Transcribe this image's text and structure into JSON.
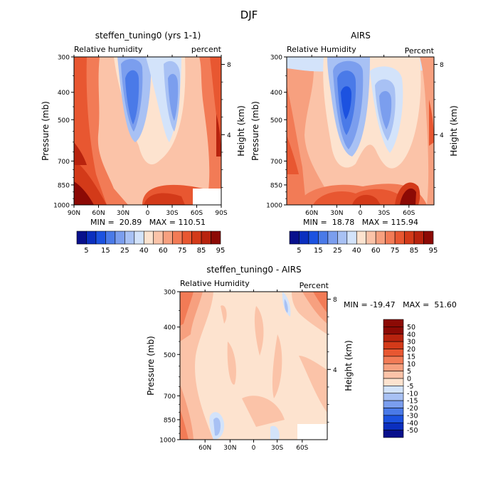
{
  "page": {
    "title": "DJF"
  },
  "chart_data": [
    {
      "type": "heatmap",
      "title": "steffen_tuning0 (yrs 1-1)",
      "left_label": "Relative humidity",
      "right_label": "percent",
      "ylabel": "Pressure (mb)",
      "y2label": "Height (km)",
      "y_ticks": [
        "300",
        "400",
        "500",
        "700",
        "850",
        "1000"
      ],
      "y2_ticks": [
        "8",
        "4"
      ],
      "x_ticks": [
        "90N",
        "60N",
        "30N",
        "0",
        "30S",
        "60S",
        "90S"
      ],
      "ylim": [
        1000,
        300
      ],
      "xlim": [
        "90N",
        "90S"
      ],
      "stats": "MIN =  20.89   MAX = 110.51",
      "colorbar_labels": [
        "5",
        "15",
        "25",
        "40",
        "60",
        "75",
        "85",
        "95"
      ]
    },
    {
      "type": "heatmap",
      "title": "AIRS",
      "left_label": "Relative Humidity",
      "right_label": "Percent",
      "ylabel": "Pressure (mb)",
      "y2label": "Height (km)",
      "y_ticks": [
        "300",
        "400",
        "500",
        "700",
        "850",
        "1000"
      ],
      "y2_ticks": [
        "8",
        "4"
      ],
      "x_ticks": [
        "60N",
        "30N",
        "0",
        "30S",
        "60S"
      ],
      "ylim": [
        1000,
        300
      ],
      "stats": "MIN =  18.78   MAX = 115.94",
      "colorbar_labels": [
        "5",
        "15",
        "25",
        "40",
        "60",
        "75",
        "85",
        "95"
      ]
    },
    {
      "type": "heatmap",
      "title": "steffen_tuning0 - AIRS",
      "left_label": "Relative Humidity",
      "right_label": "Percent",
      "ylabel": "Pressure (mb)",
      "y2label": "Height (km)",
      "y_ticks": [
        "300",
        "400",
        "500",
        "700",
        "850",
        "1000"
      ],
      "y2_ticks": [
        "8",
        "4"
      ],
      "x_ticks": [
        "60N",
        "30N",
        "0",
        "30S",
        "60S"
      ],
      "ylim": [
        1000,
        300
      ],
      "stats": "MIN = -19.47   MAX =  51.60",
      "colorbar_labels": [
        "50",
        "40",
        "30",
        "20",
        "15",
        "10",
        "5",
        "0",
        "-5",
        "-10",
        "-15",
        "-20",
        "-30",
        "-40",
        "-50"
      ]
    }
  ],
  "colors": {
    "abs_scale": [
      "#08108c",
      "#0b2fbf",
      "#1c52e0",
      "#4a7ae8",
      "#7b9eee",
      "#a8c1f4",
      "#d3e3fa",
      "#fde3cf",
      "#fbc3a8",
      "#f7a07f",
      "#f27b56",
      "#e85731",
      "#d33a19",
      "#b8230e",
      "#8c0a05"
    ],
    "diff_scale": [
      "#8c0a05",
      "#b8230e",
      "#d33a19",
      "#e85731",
      "#f27b56",
      "#f7a07f",
      "#fbc3a8",
      "#fde3cf",
      "#d3e3fa",
      "#a8c1f4",
      "#7b9eee",
      "#4a7ae8",
      "#1c52e0",
      "#0b2fbf",
      "#08108c"
    ]
  }
}
